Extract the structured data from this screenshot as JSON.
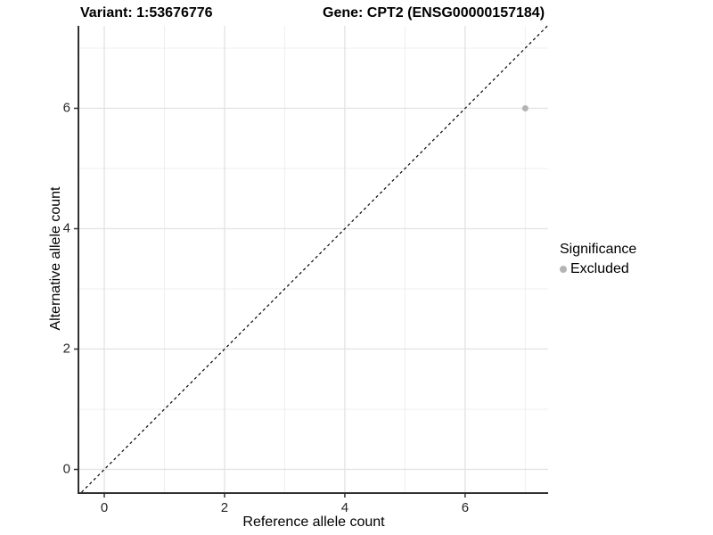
{
  "titles": {
    "variant": "Variant: 1:53676776",
    "gene": "Gene: CPT2 (ENSG00000157184)"
  },
  "chart_data": {
    "type": "scatter",
    "title_left": "Variant: 1:53676776",
    "title_right": "Gene: CPT2 (ENSG00000157184)",
    "xlabel": "Reference allele count",
    "ylabel": "Alternative allele count",
    "xlim": [
      -0.415,
      7.38
    ],
    "ylim": [
      -0.378,
      7.37
    ],
    "x_major_ticks": [
      0,
      2,
      4,
      6
    ],
    "y_major_ticks": [
      0,
      2,
      4,
      6
    ],
    "x_minor_gridlines": [
      1,
      3,
      5,
      7
    ],
    "y_minor_gridlines": [
      1,
      3,
      5,
      7
    ],
    "grid": true,
    "series": [
      {
        "name": "Excluded",
        "color": "#b4b4b4",
        "points": [
          {
            "x": 7,
            "y": 6
          }
        ]
      }
    ],
    "identity_line": {
      "slope": 1,
      "intercept": 0,
      "style": "dashed",
      "color": "#000000"
    },
    "legend": {
      "title": "Significance",
      "position": "right",
      "entries": [
        {
          "label": "Excluded",
          "color": "#b4b4b4"
        }
      ]
    }
  },
  "colors": {
    "background": "#ffffff",
    "axis_line": "#2f2f2f",
    "tick": "#333333",
    "tick_label": "#262626",
    "grid_major": "#e4e4e4",
    "grid_minor": "#efefef",
    "point": "#b4b4b4",
    "dashed_line": "#000000"
  }
}
